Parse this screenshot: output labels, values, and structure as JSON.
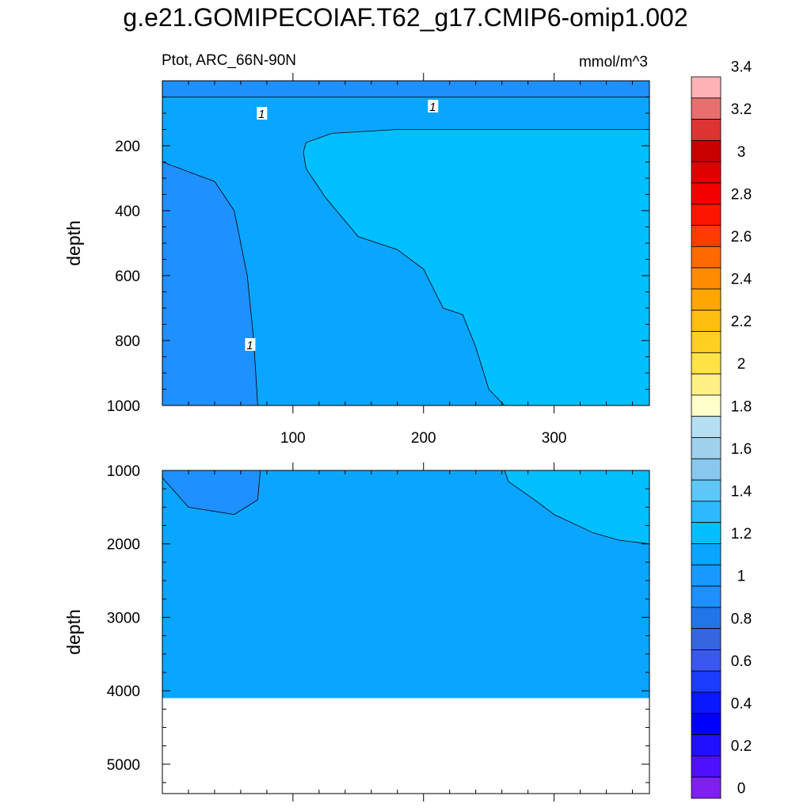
{
  "title": "g.e21.GOMIPECOIAF.T62_g17.CMIP6-omip1.002",
  "left_label": "Ptot, ARC_66N-90N",
  "right_label": "mmol/m^3",
  "colors": {
    "level_0_8_fill": "#1e90ff",
    "level_1_0_fill": "#0aa5ff",
    "level_1_2_fill": "#00bfff",
    "missing_fill": "#ffffff"
  },
  "chart_data": [
    {
      "type": "heatmap",
      "panel": "upper",
      "xlabel": "",
      "ylabel": "depth",
      "xlim": [
        0,
        373
      ],
      "ylim": [
        1000,
        0
      ],
      "x_ticks": [
        100,
        200,
        300
      ],
      "y_ticks": [
        200,
        400,
        600,
        800,
        1000
      ],
      "contour_labels": [
        {
          "text": "1",
          "x": 76,
          "y": 100
        },
        {
          "text": "1",
          "x": 207,
          "y": 78
        },
        {
          "text": "1",
          "x": 67,
          "y": 812
        }
      ],
      "regions": [
        {
          "level": "0.8-1.0",
          "outline": [
            [
              0,
              0
            ],
            [
              0,
              110
            ],
            [
              0,
              250
            ],
            [
              40,
              310
            ],
            [
              55,
              400
            ],
            [
              65,
              600
            ],
            [
              70,
              800
            ],
            [
              73,
              1000
            ],
            [
              0,
              1000
            ]
          ]
        },
        {
          "level": "0.8-1.0",
          "outline": [
            [
              0,
              0
            ],
            [
              373,
              0
            ],
            [
              373,
              50
            ],
            [
              180,
              50
            ],
            [
              0,
              50
            ]
          ]
        },
        {
          "level": "1.2-1.4",
          "outline": [
            [
              110,
              190
            ],
            [
              130,
              162
            ],
            [
              180,
              150
            ],
            [
              250,
              150
            ],
            [
              373,
              150
            ],
            [
              373,
              1000
            ],
            [
              262,
              1000
            ],
            [
              250,
              950
            ],
            [
              240,
              820
            ],
            [
              230,
              720
            ],
            [
              215,
              700
            ],
            [
              200,
              580
            ],
            [
              180,
              520
            ],
            [
              150,
              480
            ],
            [
              125,
              360
            ],
            [
              110,
              270
            ],
            [
              108,
              220
            ]
          ]
        }
      ],
      "background_level": "1.0-1.2"
    },
    {
      "type": "heatmap",
      "panel": "lower",
      "xlabel": "",
      "ylabel": "depth",
      "xlim": [
        0,
        373
      ],
      "ylim": [
        5400,
        1000
      ],
      "y_ticks": [
        1000,
        2000,
        3000,
        4000,
        5000
      ],
      "missing_below_depth": 4100,
      "regions": [
        {
          "level": "0.8-1.0",
          "outline": [
            [
              0,
              1000
            ],
            [
              75,
              1000
            ],
            [
              73,
              1400
            ],
            [
              55,
              1600
            ],
            [
              20,
              1500
            ],
            [
              0,
              1100
            ]
          ]
        },
        {
          "level": "1.2-1.4",
          "outline": [
            [
              262,
              1000
            ],
            [
              373,
              1000
            ],
            [
              373,
              2000
            ],
            [
              350,
              1950
            ],
            [
              330,
              1850
            ],
            [
              300,
              1600
            ],
            [
              285,
              1400
            ],
            [
              265,
              1150
            ]
          ]
        }
      ],
      "background_level": "1.0-1.2"
    }
  ],
  "colorbar": {
    "labels": [
      "0",
      "0.2",
      "0.4",
      "0.6",
      "0.8",
      "1",
      "1.2",
      "1.4",
      "1.6",
      "1.8",
      "2",
      "2.2",
      "2.4",
      "2.6",
      "2.8",
      "3",
      "3.2",
      "3.4"
    ],
    "colors_top_to_bottom": [
      "#ffb3b3",
      "#e96f6f",
      "#de3333",
      "#c80000",
      "#e00000",
      "#f40000",
      "#ff1400",
      "#ff3c00",
      "#ff6a00",
      "#ff8c00",
      "#ffa600",
      "#ffbe10",
      "#ffd020",
      "#ffe244",
      "#fff184",
      "#ffffcc",
      "#b4dff3",
      "#9fd0ec",
      "#88c8ee",
      "#5ec7f8",
      "#2eb8ff",
      "#00bfff",
      "#0aa5ff",
      "#1899ff",
      "#1e90ff",
      "#2275e8",
      "#3566e0",
      "#3a58f0",
      "#1e3cff",
      "#0a18ff",
      "#0000ff",
      "#2010ff",
      "#5010ff",
      "#8020f0"
    ]
  }
}
